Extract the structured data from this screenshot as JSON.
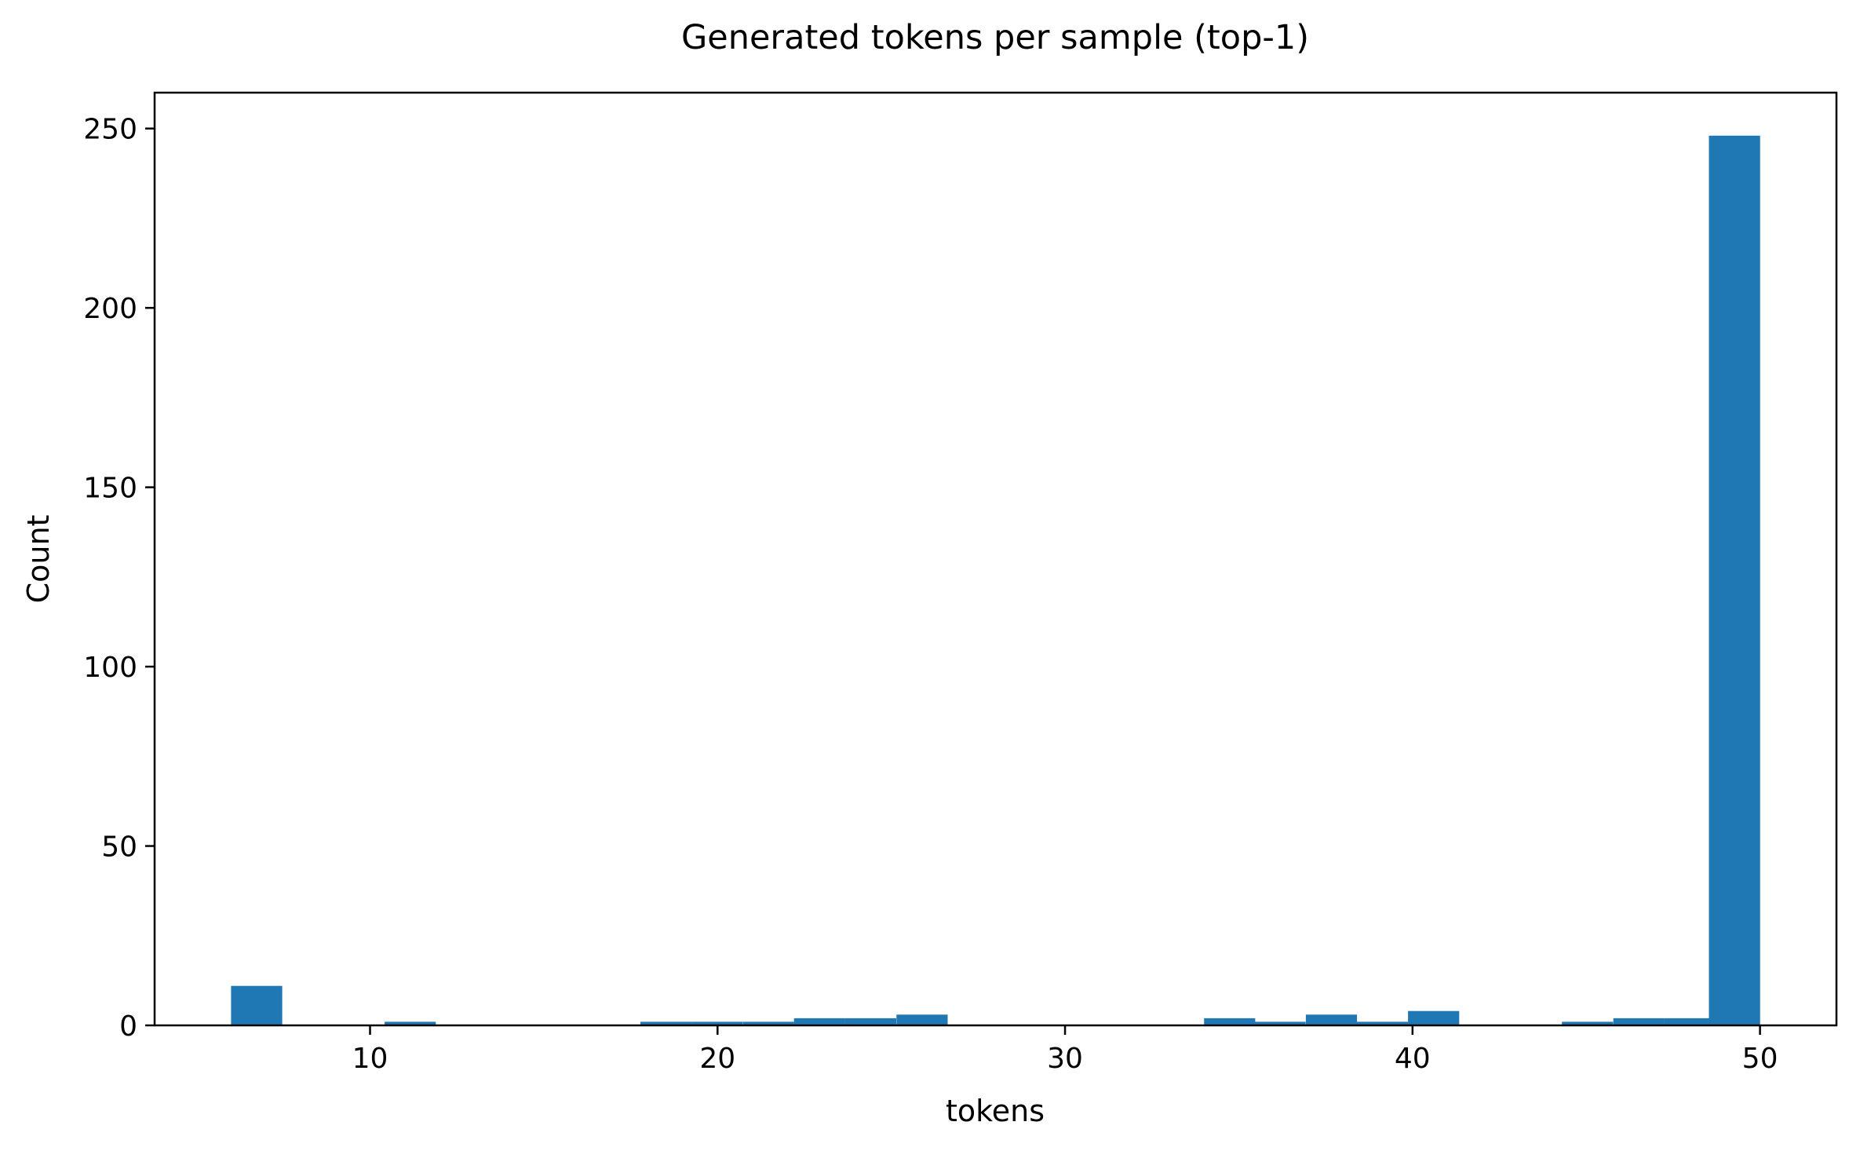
{
  "chart_data": {
    "type": "bar",
    "title": "Generated tokens per sample (top-1)",
    "xlabel": "tokens",
    "ylabel": "Count",
    "xlim": [
      3.8,
      52.2
    ],
    "ylim": [
      0,
      260
    ],
    "xticks": [
      10,
      20,
      30,
      40,
      50
    ],
    "yticks": [
      0,
      50,
      100,
      150,
      200,
      250
    ],
    "bin_width": 1.473,
    "bars": [
      {
        "x_start": 6.0,
        "value": 11
      },
      {
        "x_start": 10.42,
        "value": 1
      },
      {
        "x_start": 17.78,
        "value": 1
      },
      {
        "x_start": 19.25,
        "value": 1
      },
      {
        "x_start": 20.73,
        "value": 1
      },
      {
        "x_start": 22.2,
        "value": 2
      },
      {
        "x_start": 23.67,
        "value": 2
      },
      {
        "x_start": 25.15,
        "value": 3
      },
      {
        "x_start": 34.0,
        "value": 2
      },
      {
        "x_start": 35.45,
        "value": 1
      },
      {
        "x_start": 36.93,
        "value": 3
      },
      {
        "x_start": 38.4,
        "value": 1
      },
      {
        "x_start": 39.87,
        "value": 4
      },
      {
        "x_start": 44.3,
        "value": 1
      },
      {
        "x_start": 45.78,
        "value": 2
      },
      {
        "x_start": 47.25,
        "value": 2
      },
      {
        "x_start": 48.53,
        "value": 248
      }
    ],
    "bar_color": "#1f77b4",
    "grid": false,
    "legend": "none"
  }
}
